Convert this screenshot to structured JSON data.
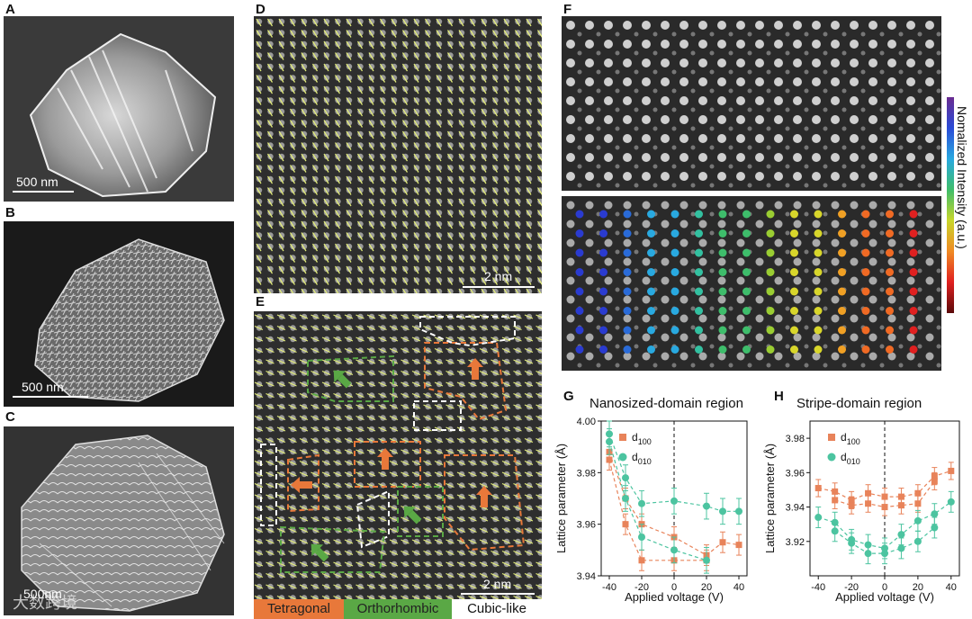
{
  "panels": {
    "A": {
      "label": "A",
      "scale": "500 nm"
    },
    "B": {
      "label": "B",
      "scale": "500 nm"
    },
    "C": {
      "label": "C",
      "scale": "500nm"
    },
    "D": {
      "label": "D",
      "scale": "2 nm"
    },
    "E": {
      "label": "E",
      "scale": "2 nm"
    },
    "F": {
      "label": "F",
      "colorbar_label": "Nomalized Intensity (a.u.)"
    },
    "G": {
      "label": "G",
      "title": "Nanosized-domain region"
    },
    "H": {
      "label": "H",
      "title": "Stripe-domain region"
    }
  },
  "legend_e": {
    "tetragonal": "Tetragonal",
    "orthorhombic": "Orthorhombic",
    "cubic": "Cubic-like"
  },
  "watermark": "大数跨境",
  "colors": {
    "tetragonal": "#e8783a",
    "orthorhombic": "#5aa845",
    "d100": "#e8835a",
    "d010": "#4cc4a0",
    "arrow": "#e6f07a"
  },
  "chart_data": [
    {
      "type": "scatter",
      "title": "Nanosized-domain region",
      "xlabel": "Applied voltage (V)",
      "ylabel": "Lattice parameter (Å)",
      "xlim": [
        -45,
        45
      ],
      "ylim": [
        3.94,
        4.0
      ],
      "xticks": [
        -40,
        -20,
        0,
        20,
        40
      ],
      "yticks": [
        3.94,
        3.96,
        3.98,
        4.0
      ],
      "vline": 0,
      "series": [
        {
          "name": "d100",
          "sub": "100",
          "marker": "square",
          "color": "#e8835a",
          "branches": [
            {
              "x": [
                -40,
                -30,
                -20,
                0,
                20,
                30,
                40
              ],
              "y": [
                3.988,
                3.97,
                3.96,
                3.955,
                3.948,
                3.953,
                3.952
              ],
              "err": [
                0.004,
                0.004,
                0.004,
                0.004,
                0.004,
                0.004,
                0.004
              ]
            },
            {
              "x": [
                -40,
                -30,
                -20,
                0,
                20
              ],
              "y": [
                3.985,
                3.96,
                3.946,
                3.946,
                3.946
              ],
              "err": [
                0.004,
                0.004,
                0.004,
                0.004,
                0.004
              ]
            }
          ]
        },
        {
          "name": "d010",
          "sub": "010",
          "marker": "circle",
          "color": "#4cc4a0",
          "branches": [
            {
              "x": [
                -40,
                -30,
                -20,
                0,
                20,
                30,
                40
              ],
              "y": [
                3.995,
                3.978,
                3.968,
                3.969,
                3.967,
                3.965,
                3.965
              ],
              "err": [
                0.005,
                0.005,
                0.005,
                0.005,
                0.005,
                0.005,
                0.005
              ]
            },
            {
              "x": [
                -40,
                -30,
                -20,
                0,
                20
              ],
              "y": [
                3.992,
                3.97,
                3.955,
                3.95,
                3.946
              ],
              "err": [
                0.005,
                0.005,
                0.005,
                0.005,
                0.005
              ]
            }
          ]
        }
      ]
    },
    {
      "type": "scatter",
      "title": "Stripe-domain region",
      "xlabel": "Applied voltage (V)",
      "ylabel": "Lattice parameter (Å)",
      "xlim": [
        -45,
        45
      ],
      "ylim": [
        3.9,
        3.99
      ],
      "xticks": [
        -40,
        -20,
        0,
        20,
        40
      ],
      "yticks": [
        3.92,
        3.94,
        3.96,
        3.98
      ],
      "vline": 0,
      "series": [
        {
          "name": "d100",
          "sub": "100",
          "marker": "square",
          "color": "#e8835a",
          "branches": [
            {
              "x": [
                -40,
                -30,
                -20,
                -10,
                0,
                10,
                20,
                30,
                40
              ],
              "y": [
                3.951,
                3.949,
                3.944,
                3.948,
                3.946,
                3.946,
                3.948,
                3.958,
                3.961
              ],
              "err": [
                0.005,
                0.005,
                0.005,
                0.005,
                0.005,
                0.005,
                0.005,
                0.005,
                0.005
              ]
            },
            {
              "x": [
                -30,
                -20,
                -10,
                0,
                10,
                20,
                30
              ],
              "y": [
                3.944,
                3.941,
                3.942,
                3.94,
                3.941,
                3.942,
                3.955
              ],
              "err": [
                0.005,
                0.005,
                0.005,
                0.005,
                0.005,
                0.005,
                0.005
              ]
            }
          ]
        },
        {
          "name": "d010",
          "sub": "010",
          "marker": "circle",
          "color": "#4cc4a0",
          "branches": [
            {
              "x": [
                -40,
                -30,
                -20,
                -10,
                0,
                10,
                20,
                30,
                40
              ],
              "y": [
                3.934,
                3.931,
                3.921,
                3.918,
                3.916,
                3.924,
                3.932,
                3.936,
                3.943
              ],
              "err": [
                0.006,
                0.006,
                0.006,
                0.006,
                0.006,
                0.006,
                0.006,
                0.006,
                0.006
              ]
            },
            {
              "x": [
                -30,
                -20,
                -10,
                0,
                10,
                20,
                30
              ],
              "y": [
                3.926,
                3.919,
                3.913,
                3.913,
                3.916,
                3.92,
                3.928
              ],
              "err": [
                0.006,
                0.006,
                0.006,
                0.006,
                0.006,
                0.006,
                0.006
              ]
            }
          ]
        }
      ]
    }
  ]
}
